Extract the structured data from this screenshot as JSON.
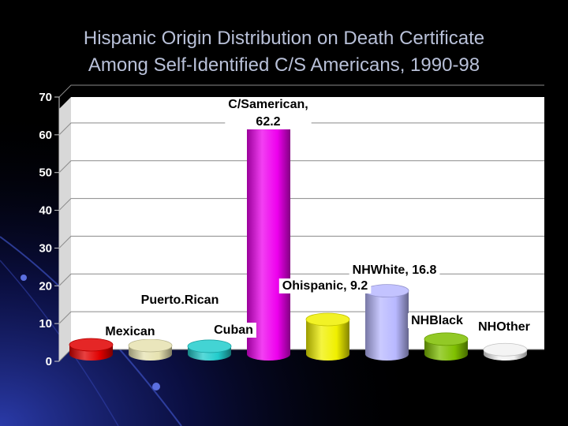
{
  "slide": {
    "title_line1": "Hispanic Origin Distribution on Death Certificate",
    "title_line2": "Among Self-Identified C/S Americans, 1990-98"
  },
  "chart_data": {
    "type": "bar",
    "style": "3d-cylinder",
    "categories": [
      "Mexican",
      "Puerto.Rican",
      "Cuban",
      "C/Samerican",
      "Ohispanic",
      "NHWhite",
      "NHBlack",
      "NHOther"
    ],
    "values": [
      2.5,
      2.3,
      2.1,
      62.2,
      9.2,
      16.8,
      4.0,
      1.2
    ],
    "data_labels": [
      "Mexican",
      "Puerto.Rican",
      "Cuban",
      "C/Samerican,|62.2",
      "Ohispanic, 9.2",
      "NHWhite, 16.8",
      "NHBlack",
      "NHOther"
    ],
    "colors": [
      "#e00000",
      "#e6e2b0",
      "#22cccc",
      "#ee00ee",
      "#f0f000",
      "#b8b8ff",
      "#7fc000",
      "#f2f2f2"
    ],
    "ylim": [
      0,
      70
    ],
    "yticks": [
      0,
      10,
      20,
      30,
      40,
      50,
      60,
      70
    ],
    "grid": true,
    "legend": "none"
  }
}
